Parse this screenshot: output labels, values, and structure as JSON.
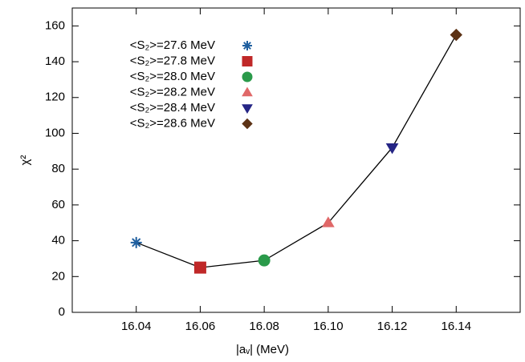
{
  "chart_data": {
    "type": "scatter",
    "xlabel": "|aᵥ| (MeV)",
    "ylabel": "χ²",
    "xlim": [
      16.02,
      16.16
    ],
    "ylim": [
      0,
      170
    ],
    "xticks": [
      16.04,
      16.06,
      16.08,
      {
        "value": 16.1,
        "label": "16.10"
      },
      16.12,
      16.14
    ],
    "yticks": [
      0,
      20,
      40,
      60,
      80,
      100,
      120,
      140,
      160
    ],
    "connect": true,
    "legend": "upper left",
    "series": [
      {
        "name": "<S₂>=27.6 MeV",
        "color": "#1f5f9f",
        "marker": "star",
        "x": [
          16.04
        ],
        "values": [
          39
        ]
      },
      {
        "name": "<S₂>=27.8 MeV",
        "color": "#c02828",
        "marker": "square",
        "x": [
          16.06
        ],
        "values": [
          25
        ]
      },
      {
        "name": "<S₂>=28.0 MeV",
        "color": "#2a9a4a",
        "marker": "circle",
        "x": [
          16.08
        ],
        "values": [
          29
        ]
      },
      {
        "name": "<S₂>=28.2 MeV",
        "color": "#e06868",
        "marker": "triangle-up",
        "x": [
          16.1
        ],
        "values": [
          50
        ]
      },
      {
        "name": "<S₂>=28.4 MeV",
        "color": "#252585",
        "marker": "triangle-down",
        "x": [
          16.12
        ],
        "values": [
          92
        ]
      },
      {
        "name": "<S₂>=28.6 MeV",
        "color": "#5c3215",
        "marker": "diamond",
        "x": [
          16.14
        ],
        "values": [
          155
        ]
      }
    ]
  }
}
